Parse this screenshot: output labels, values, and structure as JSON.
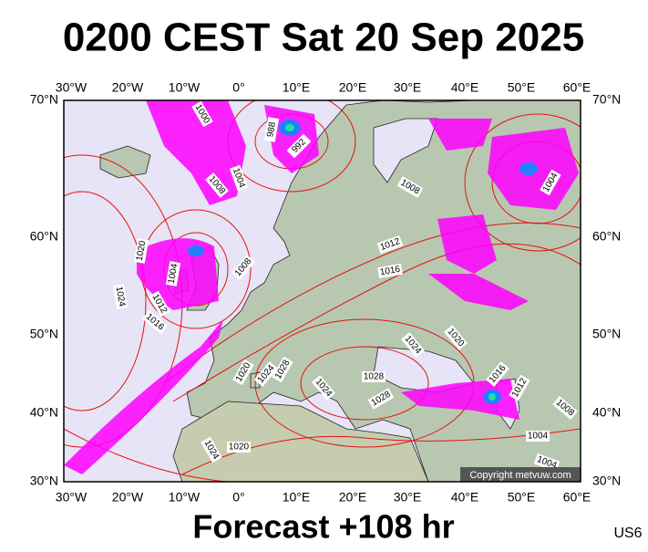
{
  "header": {
    "title": "0200 CEST Sat 20 Sep 2025"
  },
  "map": {
    "lon_labels": [
      "30°W",
      "20°W",
      "10°W",
      "0°",
      "10°E",
      "20°E",
      "30°E",
      "40°E",
      "50°E",
      "60°E"
    ],
    "lat_labels": [
      "70°N",
      "60°N",
      "50°N",
      "40°N",
      "30°N"
    ],
    "isobar_labels": [
      "1000",
      "988",
      "992",
      "1004",
      "1008",
      "1008",
      "1004",
      "1020",
      "1004",
      "1012",
      "1016",
      "1008",
      "1024",
      "1012",
      "1016",
      "1020",
      "1024",
      "1020",
      "1024",
      "1028",
      "1028",
      "1024",
      "1028",
      "1016",
      "1012",
      "1008",
      "1004",
      "1004",
      "1020",
      "1024"
    ],
    "copyright": "Copyright metvuw.com"
  },
  "footer": {
    "forecast": "Forecast +108 hr",
    "model": "US6"
  }
}
